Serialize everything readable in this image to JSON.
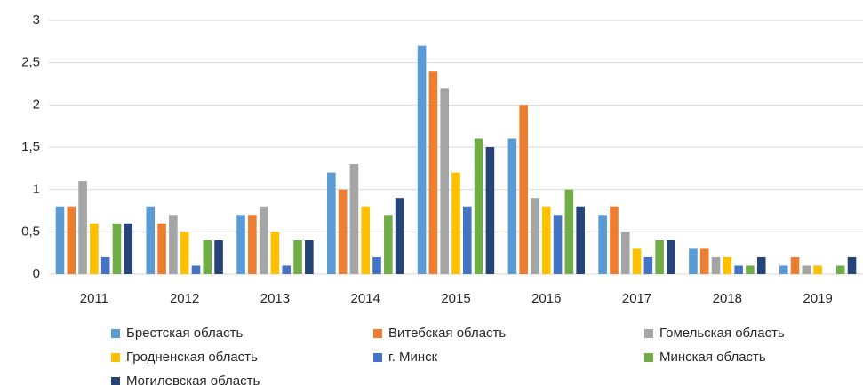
{
  "chart_data": {
    "type": "bar",
    "categories": [
      "2011",
      "2012",
      "2013",
      "2014",
      "2015",
      "2016",
      "2017",
      "2018",
      "2019"
    ],
    "series": [
      {
        "name": "Брестская область",
        "color": "#5b9bd5",
        "values": [
          0.8,
          0.8,
          0.7,
          1.2,
          2.7,
          1.6,
          0.7,
          0.3,
          0.1
        ]
      },
      {
        "name": "Витебская область",
        "color": "#ed7d31",
        "values": [
          0.8,
          0.6,
          0.7,
          1.0,
          2.4,
          2.0,
          0.8,
          0.3,
          0.2
        ]
      },
      {
        "name": "Гомельская область",
        "color": "#a5a5a5",
        "values": [
          1.1,
          0.7,
          0.8,
          1.3,
          2.2,
          0.9,
          0.5,
          0.2,
          0.1
        ]
      },
      {
        "name": "Гродненская область",
        "color": "#ffc000",
        "values": [
          0.6,
          0.5,
          0.5,
          0.8,
          1.2,
          0.8,
          0.3,
          0.2,
          0.1
        ]
      },
      {
        "name": "г. Минск",
        "color": "#4472c4",
        "values": [
          0.2,
          0.1,
          0.1,
          0.2,
          0.8,
          0.7,
          0.2,
          0.1,
          0
        ]
      },
      {
        "name": "Минская область",
        "color": "#70ad47",
        "values": [
          0.6,
          0.4,
          0.4,
          0.7,
          1.6,
          1.0,
          0.4,
          0.1,
          0.1
        ]
      },
      {
        "name": "Могилевская область",
        "color": "#264478",
        "values": [
          0.6,
          0.4,
          0.4,
          0.9,
          1.5,
          0.8,
          0.4,
          0.2,
          0.2
        ]
      }
    ],
    "ylim": [
      0,
      3
    ],
    "yticks": [
      0,
      {
        "value": 0.5,
        "label": "0,5"
      },
      1,
      {
        "value": 1.5,
        "label": "1,5"
      },
      2,
      {
        "value": 2.5,
        "label": "2,5"
      },
      3
    ],
    "grid": true,
    "legend": "bottom"
  }
}
